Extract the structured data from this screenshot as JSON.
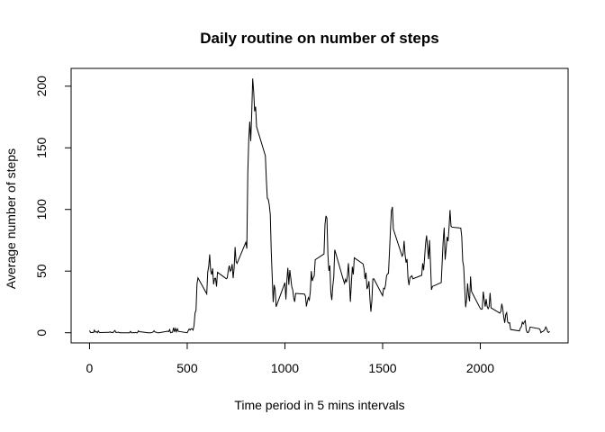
{
  "chart_data": {
    "type": "line",
    "title": "Daily routine on number of steps",
    "x_label": "Time period in 5 mins intervals",
    "y_label": "Average number of steps",
    "color": "#000000",
    "xlim": [
      -94.2,
      2449.2
    ],
    "xticks": [
      0,
      500,
      1000,
      1500,
      2000
    ],
    "ylim": [
      -8.25,
      214.42
    ],
    "yticks": [
      0,
      50,
      100,
      150,
      200
    ],
    "x": [
      0,
      5,
      10,
      15,
      20,
      25,
      30,
      35,
      40,
      45,
      50,
      55,
      100,
      105,
      110,
      115,
      120,
      125,
      130,
      135,
      140,
      145,
      150,
      155,
      200,
      205,
      210,
      215,
      220,
      225,
      230,
      235,
      240,
      245,
      250,
      255,
      300,
      305,
      310,
      315,
      320,
      325,
      330,
      335,
      340,
      345,
      350,
      355,
      400,
      405,
      410,
      415,
      420,
      425,
      430,
      435,
      440,
      445,
      450,
      455,
      500,
      505,
      510,
      515,
      520,
      525,
      530,
      535,
      540,
      545,
      550,
      555,
      600,
      605,
      610,
      615,
      620,
      625,
      630,
      635,
      640,
      645,
      650,
      655,
      700,
      705,
      710,
      715,
      720,
      725,
      730,
      735,
      740,
      745,
      750,
      755,
      800,
      805,
      810,
      815,
      820,
      825,
      830,
      835,
      840,
      845,
      850,
      855,
      900,
      905,
      910,
      915,
      920,
      925,
      930,
      935,
      940,
      945,
      950,
      955,
      1000,
      1005,
      1010,
      1015,
      1020,
      1025,
      1030,
      1035,
      1040,
      1045,
      1050,
      1055,
      1100,
      1105,
      1110,
      1115,
      1120,
      1125,
      1130,
      1135,
      1140,
      1145,
      1150,
      1155,
      1200,
      1205,
      1210,
      1215,
      1220,
      1225,
      1230,
      1235,
      1240,
      1245,
      1250,
      1255,
      1300,
      1305,
      1310,
      1315,
      1320,
      1325,
      1330,
      1335,
      1340,
      1345,
      1350,
      1355,
      1400,
      1405,
      1410,
      1415,
      1420,
      1425,
      1430,
      1435,
      1440,
      1445,
      1450,
      1455,
      1500,
      1505,
      1510,
      1515,
      1520,
      1525,
      1530,
      1535,
      1540,
      1545,
      1550,
      1555,
      1600,
      1605,
      1610,
      1615,
      1620,
      1625,
      1630,
      1635,
      1640,
      1645,
      1650,
      1655,
      1700,
      1705,
      1710,
      1715,
      1720,
      1725,
      1730,
      1735,
      1740,
      1745,
      1750,
      1755,
      1800,
      1805,
      1810,
      1815,
      1820,
      1825,
      1830,
      1835,
      1840,
      1845,
      1850,
      1855,
      1900,
      1905,
      1910,
      1915,
      1920,
      1925,
      1930,
      1935,
      1940,
      1945,
      1950,
      1955,
      2000,
      2005,
      2010,
      2015,
      2020,
      2025,
      2030,
      2035,
      2040,
      2045,
      2050,
      2055,
      2100,
      2105,
      2110,
      2115,
      2120,
      2125,
      2130,
      2135,
      2140,
      2145,
      2150,
      2155,
      2200,
      2205,
      2210,
      2215,
      2220,
      2225,
      2230,
      2235,
      2240,
      2245,
      2250,
      2255,
      2300,
      2305,
      2310,
      2315,
      2320,
      2325,
      2330,
      2335,
      2340,
      2345,
      2350,
      2355
    ],
    "values": [
      1.7,
      0.3,
      0.1,
      0.2,
      0.1,
      2.1,
      0.5,
      0.9,
      0,
      1.5,
      0.3,
      0.1,
      0.3,
      0.7,
      0.2,
      0.3,
      0,
      1.1,
      1.8,
      0.2,
      0.2,
      0.4,
      0.3,
      0,
      0,
      0,
      1.1,
      0,
      0,
      0.1,
      0,
      0.2,
      0,
      0,
      1.5,
      0.9,
      0,
      0,
      0,
      0,
      0.2,
      0.6,
      1.6,
      0.6,
      0.5,
      0.1,
      0,
      0,
      1.2,
      0.9,
      2.6,
      0,
      0.3,
      0.4,
      4.1,
      0.7,
      3.5,
      0.8,
      3.1,
      1.1,
      0,
      1.6,
      3.0,
      2.2,
      3.3,
      3.0,
      2.1,
      6.1,
      16.0,
      18.3,
      39.5,
      44.5,
      31.5,
      49.3,
      53.8,
      63.5,
      50,
      47.1,
      52.2,
      39.3,
      44.0,
      44.2,
      37.4,
      49.0,
      43.8,
      44.4,
      50.5,
      54.5,
      49.9,
      51.0,
      55.7,
      44.3,
      52.3,
      69.5,
      57.8,
      56.2,
      73.4,
      68.2,
      129.4,
      157.5,
      171.2,
      155.4,
      177.3,
      206.2,
      195.9,
      179.6,
      183.4,
      167.0,
      143.5,
      124.0,
      109.1,
      108.1,
      103.7,
      95.97,
      66.2,
      45.2,
      24.8,
      38.8,
      34.98,
      21.1,
      40.6,
      26.98,
      42.4,
      52.7,
      38.9,
      50.8,
      44.3,
      37.4,
      34.7,
      28.3,
      25.1,
      31.9,
      31.4,
      29.7,
      21.3,
      25.5,
      28.4,
      26.5,
      33.4,
      50.0,
      42.0,
      44.6,
      46.0,
      59.2,
      63.9,
      87.7,
      94.8,
      92.8,
      63.4,
      50.2,
      54.5,
      32.4,
      26.5,
      37.7,
      45.1,
      67.3,
      42.3,
      39.9,
      43.3,
      40.98,
      46.2,
      56.4,
      42.8,
      25.1,
      39.97,
      53.5,
      47.3,
      60.8,
      55.8,
      51.96,
      43.6,
      48.7,
      35.5,
      37.5,
      41.8,
      27.5,
      17.1,
      26.1,
      43.6,
      43.8,
      30.0,
      36.1,
      35.5,
      38.8,
      45.96,
      47.8,
      48.1,
      65.3,
      82.9,
      98.7,
      102.1,
      83.96,
      62.1,
      64.1,
      74.5,
      63.2,
      56.9,
      59.8,
      43.9,
      38.6,
      44.7,
      45.5,
      46.2,
      43.7,
      46.6,
      56.3,
      50.7,
      61.2,
      72.7,
      78.9,
      68.9,
      59.7,
      75.1,
      56.5,
      34.8,
      37.5,
      40.7,
      58.0,
      74.7,
      85.3,
      59.3,
      67.8,
      77.7,
      74.2,
      85.3,
      99.5,
      86.6,
      85.6,
      84.9,
      77.8,
      58.0,
      53.4,
      36.3,
      20.7,
      27.4,
      40.0,
      30.2,
      25.5,
      45.7,
      33.5,
      19.6,
      19.0,
      19.3,
      33.3,
      26.8,
      21.2,
      27.3,
      21.3,
      19.5,
      21.3,
      32.3,
      20.2,
      15.9,
      17.2,
      23.5,
      19.2,
      12.5,
      8.0,
      14.7,
      16.3,
      8.7,
      7.8,
      8.1,
      2.6,
      1.5,
      3.7,
      4.8,
      8.5,
      7.1,
      8.7,
      9.8,
      2.2,
      0.3,
      0.1,
      1.6,
      4.6,
      3.3,
      2.8,
      0,
      0.8,
      1.0,
      1.6,
      2.6,
      4.7,
      3.3,
      0.6,
      0.2,
      1.1
    ]
  }
}
